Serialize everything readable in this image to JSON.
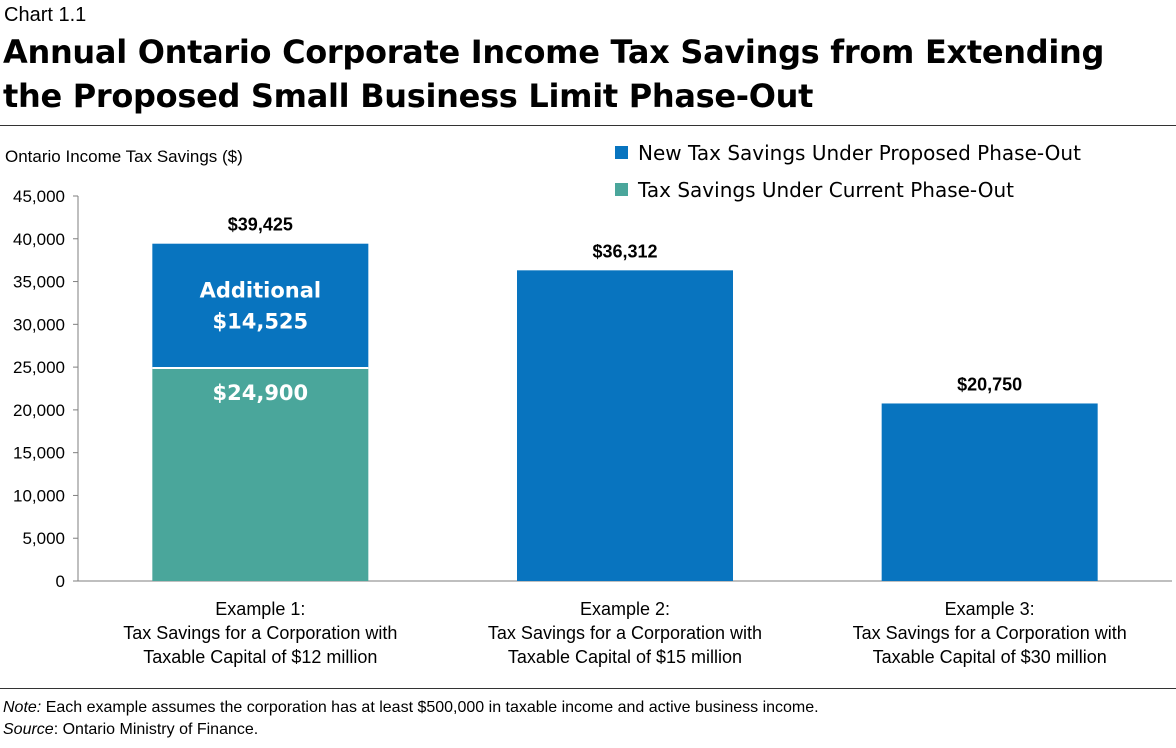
{
  "header": {
    "chart_label": "Chart 1.1",
    "title_line1": "Annual Ontario Corporate Income Tax Savings from Extending",
    "title_line2": "the Proposed Small Business Limit Phase-Out"
  },
  "notes": {
    "note_label": "Note:",
    "note_text": " Each example assumes the corporation has at least $500,000 in taxable income and active business income.",
    "source_label": "Source",
    "source_text": ": Ontario Ministry of Finance."
  },
  "chart_data": {
    "type": "bar",
    "stacked": true,
    "ylabel": "Ontario Income Tax Savings ($)",
    "ylim": [
      0,
      45000
    ],
    "yticks": [
      0,
      5000,
      10000,
      15000,
      20000,
      25000,
      30000,
      35000,
      40000,
      45000
    ],
    "ytick_labels": [
      "0",
      "5,000",
      "10,000",
      "15,000",
      "20,000",
      "25,000",
      "30,000",
      "35,000",
      "40,000",
      "45,000"
    ],
    "grid": false,
    "legend_position": "top-right",
    "categories": [
      [
        "Example 1:",
        "Tax Savings for a Corporation with",
        "Taxable Capital of $12 million"
      ],
      [
        "Example 2:",
        "Tax Savings for a Corporation with",
        "Taxable Capital of $15 million"
      ],
      [
        "Example 3:",
        "Tax Savings for a Corporation with",
        "Taxable Capital of $30 million"
      ]
    ],
    "series": [
      {
        "name": "Tax Savings Under Current Phase-Out",
        "color": "#4aa69b",
        "values": [
          24900,
          0,
          0
        ]
      },
      {
        "name": "New Tax Savings Under Proposed Phase-Out",
        "color": "#0874bf",
        "values": [
          14525,
          36312,
          20750
        ]
      }
    ],
    "legend_order": [
      1,
      0
    ],
    "total_labels": [
      "$39,425",
      "$36,312",
      "$20,750"
    ],
    "segment_labels": [
      {
        "bar": 0,
        "series": 1,
        "lines": [
          "Additional",
          "$14,525"
        ]
      },
      {
        "bar": 0,
        "series": 0,
        "lines": [
          "$24,900"
        ]
      }
    ]
  }
}
